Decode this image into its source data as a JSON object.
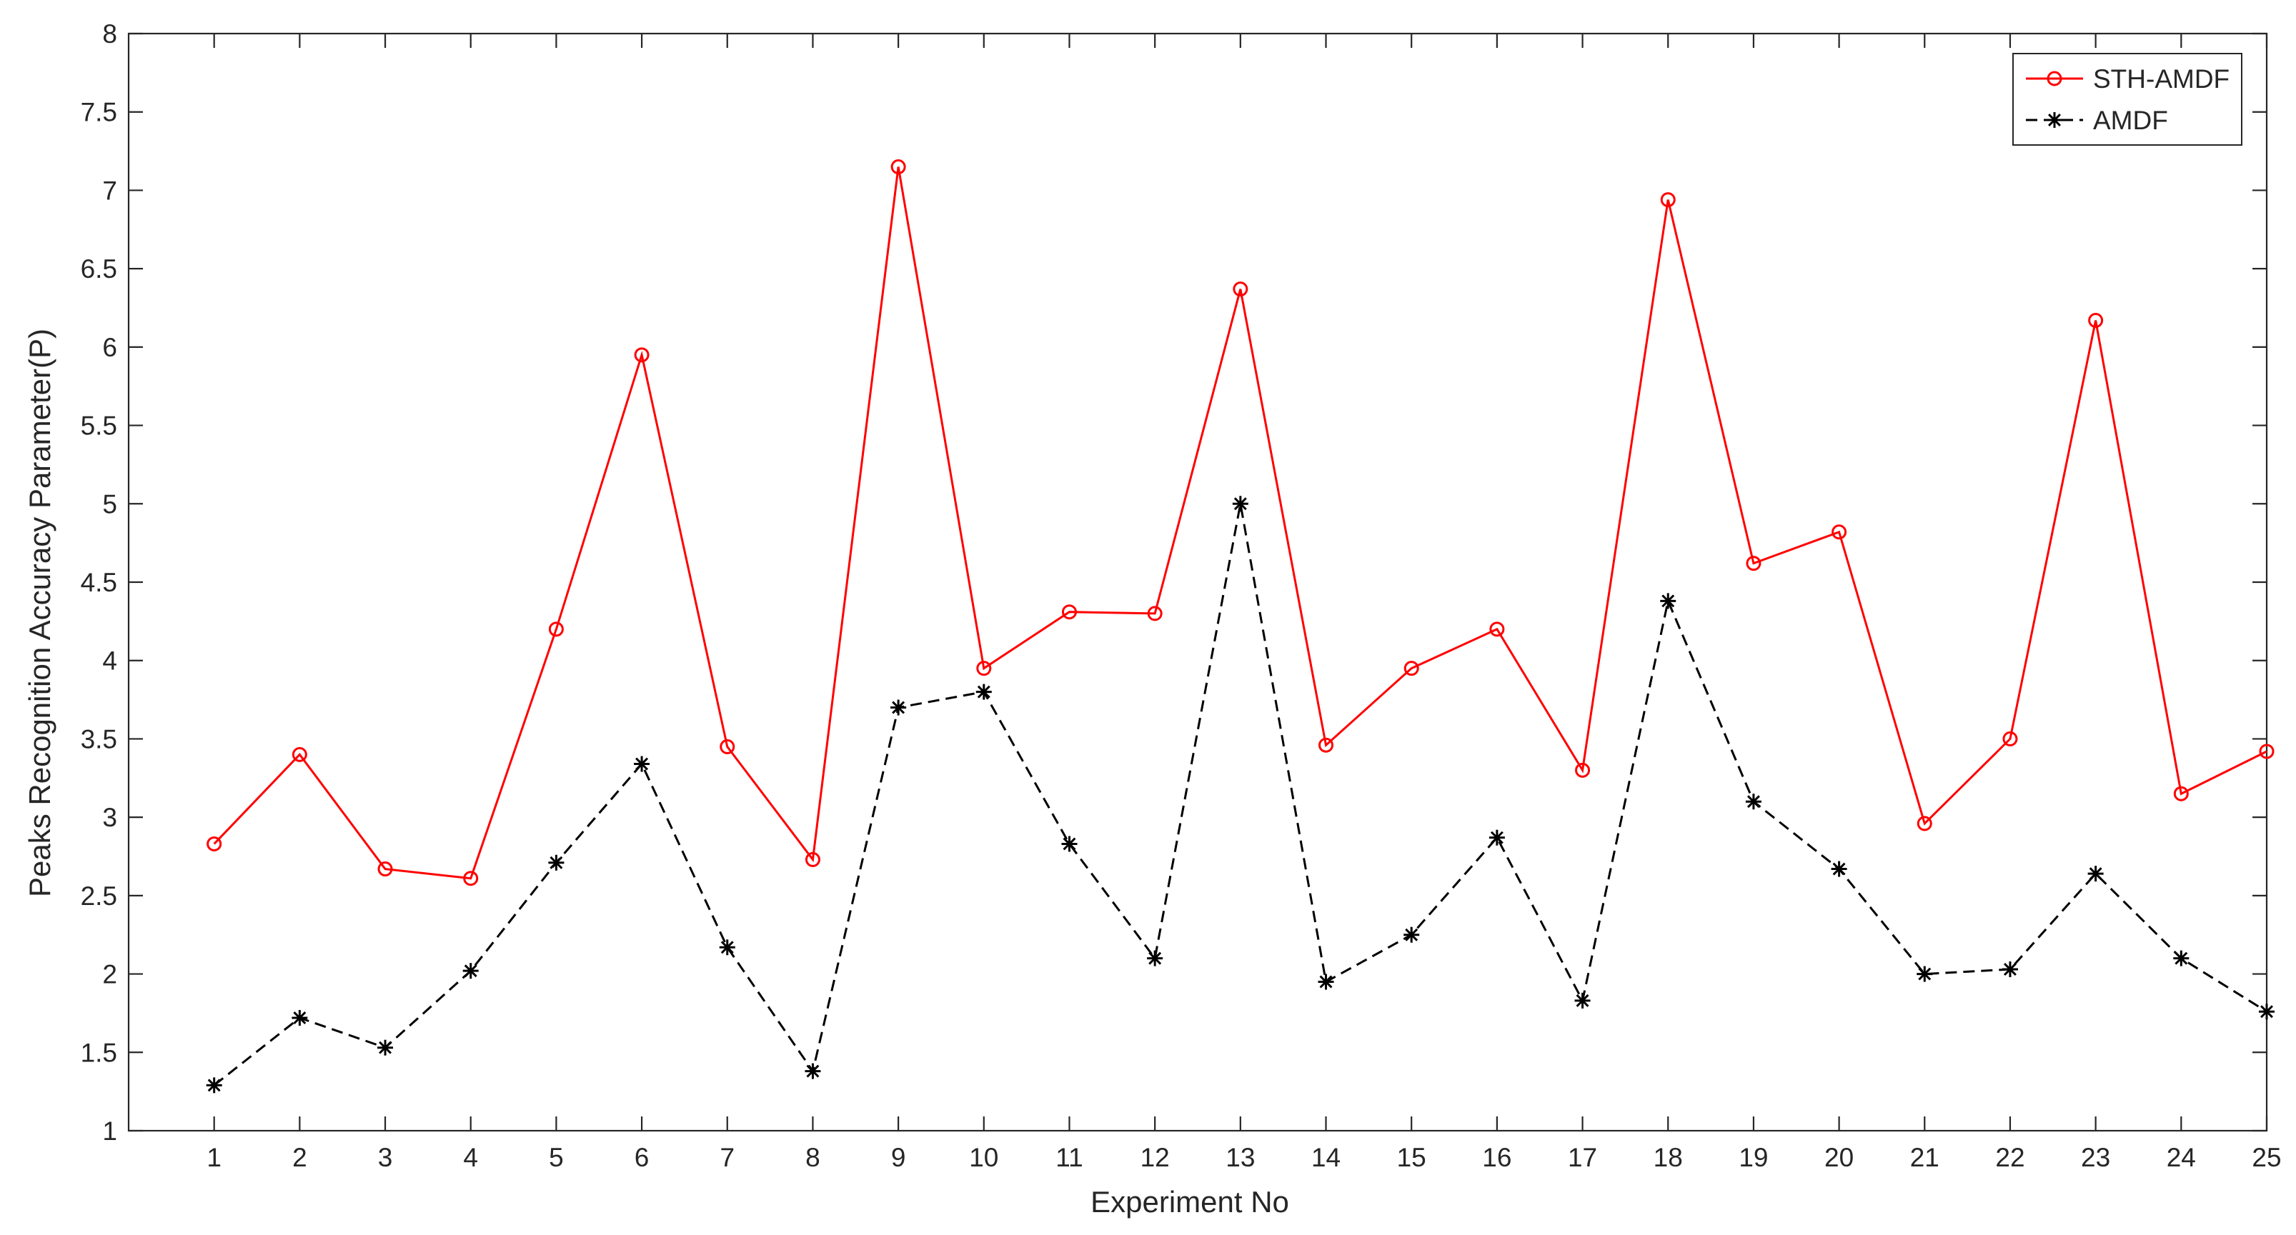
{
  "chart_data": {
    "type": "line",
    "title": "",
    "xlabel": "Experiment No",
    "ylabel": "Peaks Recognition Accuracy Parameter(P)",
    "xlim": [
      0,
      25
    ],
    "ylim": [
      1,
      8
    ],
    "x_ticks": [
      1,
      2,
      3,
      4,
      5,
      6,
      7,
      8,
      9,
      10,
      11,
      12,
      13,
      14,
      15,
      16,
      17,
      18,
      19,
      20,
      21,
      22,
      23,
      24,
      25
    ],
    "y_ticks": [
      "1",
      "1.5",
      "2",
      "2.5",
      "3",
      "3.5",
      "4",
      "4.5",
      "5",
      "5.5",
      "6",
      "6.5",
      "7",
      "7.5",
      "8"
    ],
    "grid": false,
    "legend_position": "top-right",
    "x": [
      1,
      2,
      3,
      4,
      5,
      6,
      7,
      8,
      9,
      10,
      11,
      12,
      13,
      14,
      15,
      16,
      17,
      18,
      19,
      20,
      21,
      22,
      23,
      24,
      25
    ],
    "series": [
      {
        "name": "STH-AMDF",
        "color": "#ff0000",
        "marker": "circle",
        "line_style": "solid",
        "values": [
          2.83,
          3.4,
          2.67,
          2.61,
          4.2,
          5.95,
          3.45,
          2.73,
          7.15,
          3.95,
          4.31,
          4.3,
          6.37,
          3.46,
          3.95,
          4.2,
          3.3,
          6.94,
          4.62,
          4.82,
          2.96,
          3.5,
          6.17,
          3.15,
          3.42
        ]
      },
      {
        "name": "AMDF",
        "color": "#000000",
        "marker": "asterisk",
        "line_style": "dashed",
        "values": [
          1.29,
          1.72,
          1.53,
          2.02,
          2.71,
          3.34,
          2.17,
          1.38,
          3.7,
          3.8,
          2.83,
          2.1,
          5.0,
          1.95,
          2.25,
          2.87,
          1.83,
          4.38,
          3.1,
          2.67,
          2.0,
          2.03,
          2.64,
          2.1,
          1.76
        ]
      }
    ]
  }
}
